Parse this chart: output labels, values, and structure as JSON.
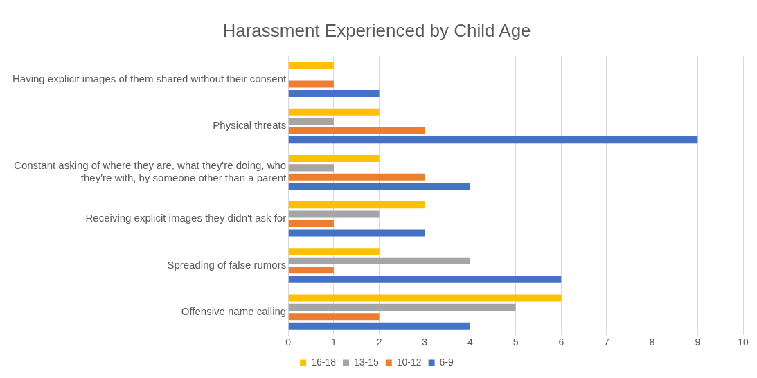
{
  "chart_data": {
    "type": "bar",
    "orientation": "horizontal",
    "title": "Harassment Experienced by Child Age",
    "categories": [
      "Having explicit images of them shared without their consent",
      "Physical threats",
      "Constant asking of where they are, what they're doing, who they're with, by someone other than a parent",
      "Receiving explicit images they didn't ask for",
      "Spreading of false rumors",
      "Offensive name calling"
    ],
    "series": [
      {
        "name": "16-18",
        "color": "#ffc000",
        "values": [
          1,
          2,
          2,
          3,
          2,
          6
        ]
      },
      {
        "name": "13-15",
        "color": "#a5a5a5",
        "values": [
          0,
          1,
          1,
          2,
          4,
          5
        ]
      },
      {
        "name": "10-12",
        "color": "#ed7d31",
        "values": [
          1,
          3,
          3,
          1,
          1,
          2
        ]
      },
      {
        "name": "6-9",
        "color": "#4472c4",
        "values": [
          2,
          9,
          4,
          3,
          6,
          4
        ]
      }
    ],
    "xlim": [
      0,
      10
    ],
    "xticks": [
      0,
      1,
      2,
      3,
      4,
      5,
      6,
      7,
      8,
      9,
      10
    ],
    "grid": "x",
    "legend": "bottom"
  }
}
